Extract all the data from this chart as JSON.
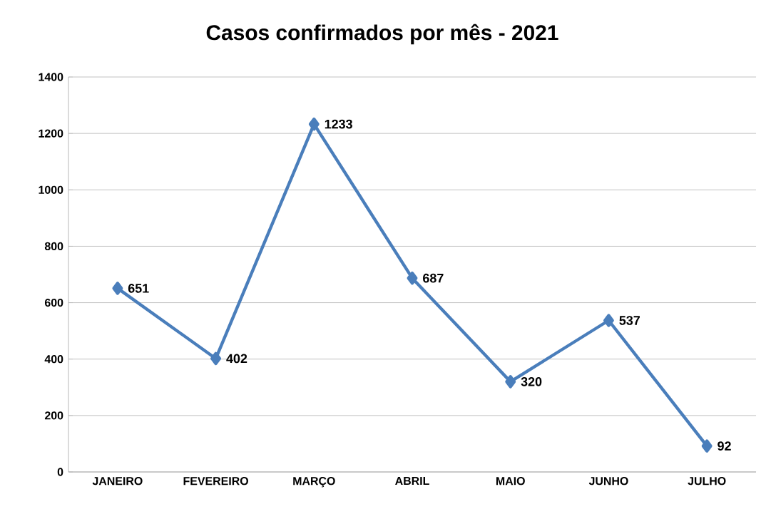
{
  "chart_data": {
    "type": "line",
    "title": "Casos confirmados por mês - 2021",
    "categories": [
      "JANEIRO",
      "FEVEREIRO",
      "MARÇO",
      "ABRIL",
      "MAIO",
      "JUNHO",
      "JULHO"
    ],
    "values": [
      651,
      402,
      1233,
      687,
      320,
      537,
      92
    ],
    "color": "#4a7ebb",
    "marker": "diamond",
    "line_style": "solid",
    "ylim": [
      0,
      1400
    ],
    "yticks": [
      0,
      200,
      400,
      600,
      800,
      1000,
      1200,
      1400
    ],
    "grid": "y",
    "data_labels": true
  }
}
